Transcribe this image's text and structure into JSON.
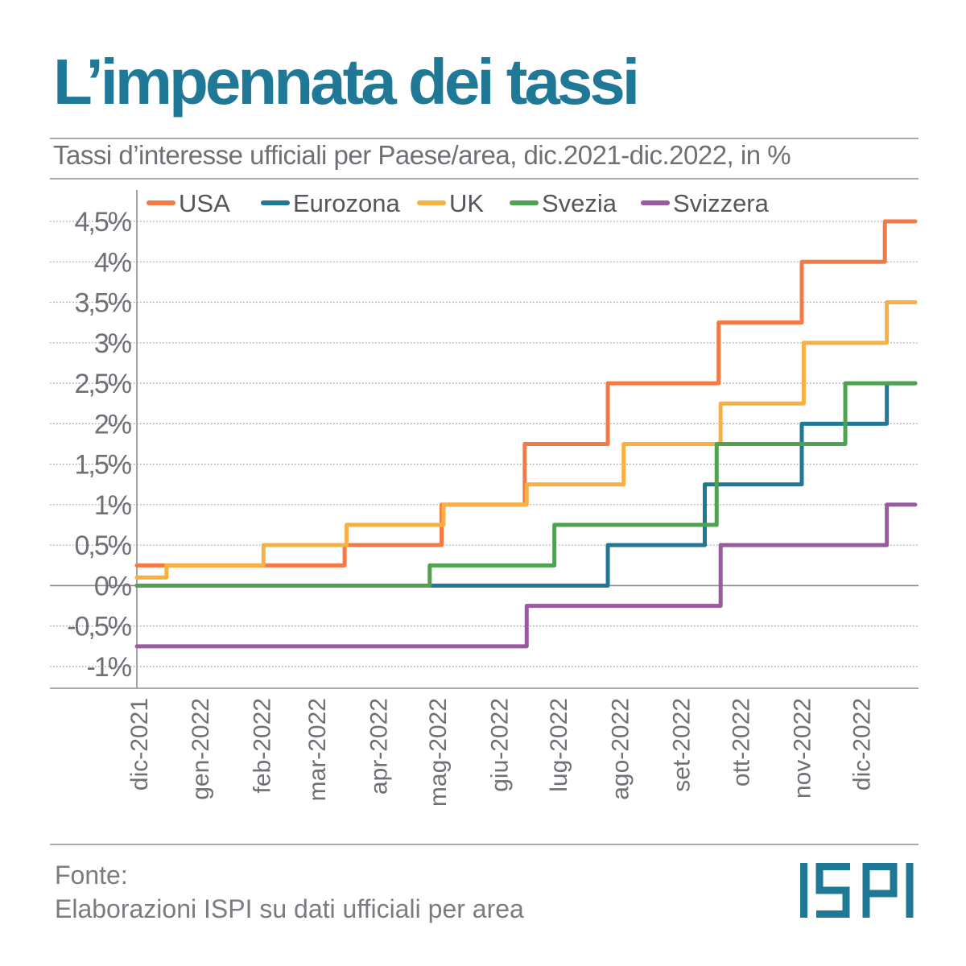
{
  "title": "L’impennata dei tassi",
  "subtitle": "Tassi d’interesse ufficiali per Paese/area, dic.2021-dic.2022, in %",
  "source": {
    "label": "Fonte:",
    "text": "Elaborazioni ISPI su dati ufficiali per area"
  },
  "logo": {
    "text": "ISPI",
    "color": "#1f7896"
  },
  "chart_data": {
    "type": "line",
    "step": true,
    "x_unit": "date",
    "x_range": [
      "2021-12-01",
      "2022-12-31"
    ],
    "x_ticks": [
      "dic-2021",
      "gen-2022",
      "feb-2022",
      "mar-2022",
      "apr-2022",
      "mag-2022",
      "giu-2022",
      "lug-2022",
      "ago-2022",
      "set-2022",
      "ott-2022",
      "nov-2022",
      "dic-2022"
    ],
    "x_tick_dates": [
      "2021-12-01",
      "2022-01-01",
      "2022-02-01",
      "2022-03-01",
      "2022-04-01",
      "2022-05-01",
      "2022-06-01",
      "2022-07-01",
      "2022-08-01",
      "2022-09-01",
      "2022-10-01",
      "2022-11-01",
      "2022-12-01"
    ],
    "y_ticks": [
      {
        "value": 4.5,
        "label": "4,5%"
      },
      {
        "value": 4,
        "label": "4%"
      },
      {
        "value": 3.5,
        "label": "3,5%"
      },
      {
        "value": 3,
        "label": "3%"
      },
      {
        "value": 2.5,
        "label": "2,5%"
      },
      {
        "value": 2,
        "label": "2%"
      },
      {
        "value": 1.5,
        "label": "1,5%"
      },
      {
        "value": 1,
        "label": "1%"
      },
      {
        "value": 0.5,
        "label": "0,5%"
      },
      {
        "value": 0,
        "label": "0%"
      },
      {
        "value": -0.5,
        "label": "-0,5%"
      },
      {
        "value": -1,
        "label": "-1%"
      }
    ],
    "ylim": [
      -1,
      4.5
    ],
    "grid": true,
    "legend_position": "top",
    "series": [
      {
        "name": "USA",
        "color": "#f47a45",
        "points": [
          {
            "date": "2021-12-01",
            "value": 0.25
          },
          {
            "date": "2022-03-16",
            "value": 0.5
          },
          {
            "date": "2022-05-04",
            "value": 1.0
          },
          {
            "date": "2022-06-15",
            "value": 1.75
          },
          {
            "date": "2022-07-27",
            "value": 2.5
          },
          {
            "date": "2022-09-21",
            "value": 3.25
          },
          {
            "date": "2022-11-02",
            "value": 4.0
          },
          {
            "date": "2022-12-14",
            "value": 4.5
          },
          {
            "date": "2022-12-16",
            "value": 4.5
          }
        ]
      },
      {
        "name": "Eurozona",
        "color": "#1f7896",
        "points": [
          {
            "date": "2021-12-01",
            "value": 0.0
          },
          {
            "date": "2022-07-27",
            "value": 0.5
          },
          {
            "date": "2022-09-14",
            "value": 1.25
          },
          {
            "date": "2022-11-02",
            "value": 2.0
          },
          {
            "date": "2022-12-15",
            "value": 2.5
          },
          {
            "date": "2022-12-16",
            "value": 2.5
          }
        ]
      },
      {
        "name": "UK",
        "color": "#f9b043",
        "points": [
          {
            "date": "2021-12-01",
            "value": 0.1
          },
          {
            "date": "2021-12-16",
            "value": 0.25
          },
          {
            "date": "2022-02-03",
            "value": 0.5
          },
          {
            "date": "2022-03-17",
            "value": 0.75
          },
          {
            "date": "2022-05-05",
            "value": 1.0
          },
          {
            "date": "2022-06-16",
            "value": 1.25
          },
          {
            "date": "2022-08-04",
            "value": 1.75
          },
          {
            "date": "2022-09-22",
            "value": 2.25
          },
          {
            "date": "2022-11-03",
            "value": 3.0
          },
          {
            "date": "2022-12-15",
            "value": 3.5
          },
          {
            "date": "2022-12-16",
            "value": 3.5
          }
        ]
      },
      {
        "name": "Svezia",
        "color": "#4fa24f",
        "points": [
          {
            "date": "2021-12-01",
            "value": 0.0
          },
          {
            "date": "2022-04-28",
            "value": 0.25
          },
          {
            "date": "2022-06-30",
            "value": 0.75
          },
          {
            "date": "2022-09-20",
            "value": 1.75
          },
          {
            "date": "2022-11-24",
            "value": 2.5
          },
          {
            "date": "2022-12-16",
            "value": 2.5
          }
        ]
      },
      {
        "name": "Svizzera",
        "color": "#9a5aa0",
        "points": [
          {
            "date": "2021-12-01",
            "value": -0.75
          },
          {
            "date": "2022-06-16",
            "value": -0.25
          },
          {
            "date": "2022-09-22",
            "value": 0.5
          },
          {
            "date": "2022-12-15",
            "value": 1.0
          },
          {
            "date": "2022-12-16",
            "value": 1.0
          }
        ]
      }
    ]
  }
}
